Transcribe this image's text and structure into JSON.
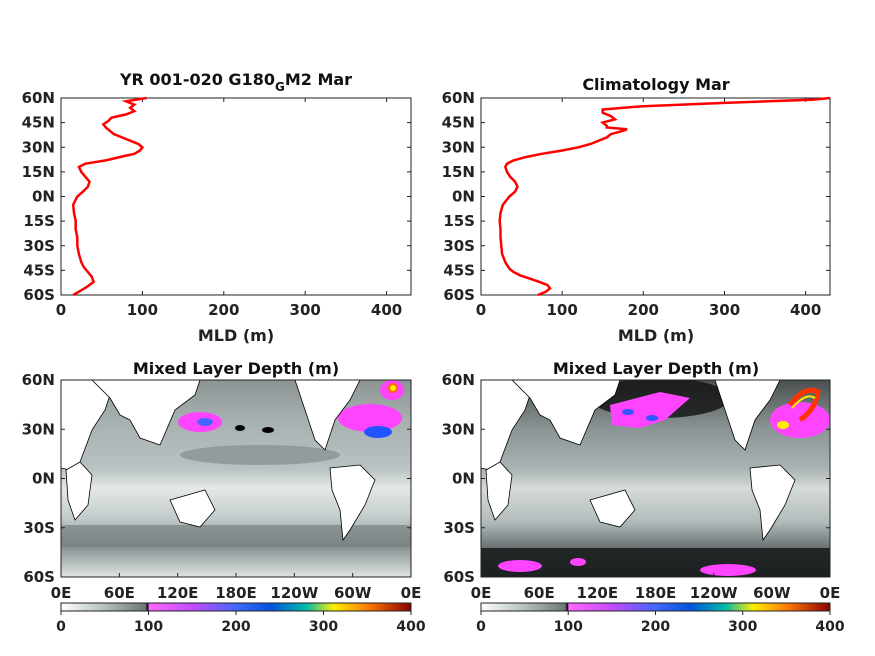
{
  "chart_data": [
    {
      "type": "line",
      "title": "YR 001-020 G180",
      "title_sub": "G",
      "title_tail": "M2 Mar",
      "xlabel": "MLD (m)",
      "ylabel": "",
      "xlim": [
        0,
        430
      ],
      "ylim": [
        -60,
        60
      ],
      "x_ticks": [
        "0",
        "100",
        "200",
        "300",
        "400"
      ],
      "y_ticks": [
        "60N",
        "45N",
        "30N",
        "15N",
        "0N",
        "15S",
        "30S",
        "45S",
        "60S"
      ],
      "color": "#ff0000",
      "series": [
        {
          "y": [
            -60,
            -58,
            -55,
            -52,
            -49,
            -46,
            -43,
            -40,
            -35,
            -30,
            -25,
            -20,
            -15,
            -10,
            -5,
            0,
            3,
            6,
            9,
            12,
            15,
            18,
            20,
            22,
            24,
            26,
            28,
            30,
            32,
            34,
            36,
            38,
            40,
            42,
            44,
            46,
            48,
            50,
            52,
            54,
            56,
            58,
            60
          ],
          "x": [
            15,
            22,
            32,
            40,
            38,
            33,
            28,
            25,
            22,
            20,
            20,
            18,
            18,
            16,
            15,
            20,
            27,
            33,
            35,
            30,
            25,
            22,
            30,
            55,
            72,
            90,
            97,
            100,
            95,
            85,
            75,
            65,
            60,
            55,
            52,
            58,
            62,
            80,
            90,
            85,
            90,
            80,
            105
          ]
        }
      ]
    },
    {
      "type": "line",
      "title": "Climatology Mar",
      "xlabel": "MLD (m)",
      "ylabel": "",
      "xlim": [
        0,
        430
      ],
      "ylim": [
        -60,
        60
      ],
      "x_ticks": [
        "0",
        "100",
        "200",
        "300",
        "400"
      ],
      "y_ticks": [
        "60N",
        "45N",
        "30N",
        "15N",
        "0N",
        "15S",
        "30S",
        "45S",
        "60S"
      ],
      "color": "#ff0000",
      "series": [
        {
          "y": [
            -60,
            -58,
            -56,
            -54,
            -52,
            -50,
            -48,
            -46,
            -44,
            -40,
            -35,
            -30,
            -25,
            -20,
            -15,
            -10,
            -5,
            0,
            3,
            6,
            9,
            12,
            15,
            18,
            20,
            22,
            24,
            26,
            28,
            30,
            32,
            34,
            36,
            38,
            40,
            41,
            42,
            43,
            45,
            47,
            49,
            51,
            53,
            55,
            57,
            59,
            60
          ],
          "x": [
            70,
            80,
            85,
            82,
            72,
            60,
            48,
            40,
            35,
            30,
            26,
            25,
            24,
            24,
            23,
            24,
            27,
            35,
            42,
            45,
            42,
            36,
            32,
            30,
            32,
            40,
            55,
            75,
            100,
            120,
            135,
            145,
            155,
            160,
            175,
            180,
            155,
            155,
            150,
            165,
            160,
            150,
            150,
            200,
            300,
            410,
            430
          ]
        }
      ]
    },
    {
      "type": "heatmap",
      "title": "Mixed Layer Depth (m)",
      "x_ticks": [
        "0E",
        "60E",
        "120E",
        "180E",
        "120W",
        "60W",
        "0E"
      ],
      "y_ticks": [
        "60N",
        "30N",
        "0N",
        "30S",
        "60S"
      ],
      "colorbar_ticks": [
        "0",
        "100",
        "200",
        "300",
        "400"
      ],
      "colorbar_range": [
        0,
        400
      ],
      "colormap": [
        "#ffffff",
        "#9aa4a4",
        "#000000",
        "#ff44ff",
        "#8844ff",
        "#0044ff",
        "#00ccaa",
        "#ffff00",
        "#ff8800",
        "#990000"
      ]
    },
    {
      "type": "heatmap",
      "title": "Mixed Layer Depth (m)",
      "x_ticks": [
        "0E",
        "60E",
        "120E",
        "180E",
        "120W",
        "60W",
        "0E"
      ],
      "y_ticks": [
        "60N",
        "30N",
        "0N",
        "30S",
        "60S"
      ],
      "colorbar_ticks": [
        "0",
        "100",
        "200",
        "300",
        "400"
      ],
      "colorbar_range": [
        0,
        400
      ],
      "colormap": [
        "#ffffff",
        "#9aa4a4",
        "#000000",
        "#ff44ff",
        "#8844ff",
        "#0044ff",
        "#00ccaa",
        "#ffff00",
        "#ff8800",
        "#990000"
      ]
    }
  ]
}
